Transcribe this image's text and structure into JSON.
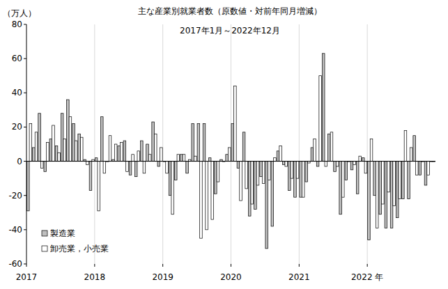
{
  "chart_data": {
    "type": "bar",
    "title": "主な産業別就業者数（原数値・対前年同月増減）",
    "subtitle": "2017年1月～2022年12月",
    "y_label": "（万人）",
    "categories": [
      "2017",
      null,
      null,
      null,
      null,
      null,
      null,
      null,
      null,
      null,
      null,
      null,
      "2018",
      null,
      null,
      null,
      null,
      null,
      null,
      null,
      null,
      null,
      null,
      null,
      "2019",
      null,
      null,
      null,
      null,
      null,
      null,
      null,
      null,
      null,
      null,
      null,
      "2020",
      null,
      null,
      null,
      null,
      null,
      null,
      null,
      null,
      null,
      null,
      null,
      "2021",
      null,
      null,
      null,
      null,
      null,
      null,
      null,
      null,
      null,
      null,
      null,
      "2022 年",
      null,
      null,
      null,
      null,
      null,
      null,
      null,
      null,
      null,
      null,
      null
    ],
    "series": [
      {
        "name": "製造業",
        "color": "#bfbfbf",
        "values": [
          -29,
          8,
          28,
          -6,
          13,
          9,
          28,
          36,
          22,
          16,
          1,
          -17,
          2,
          26,
          0,
          1,
          9,
          12,
          -8,
          -9,
          12,
          10,
          23,
          -3,
          0,
          -20,
          -11,
          4,
          -7,
          22,
          22,
          22,
          2,
          -19,
          1,
          4,
          22,
          -4,
          17,
          -32,
          -28,
          -9,
          -51,
          -38,
          6,
          -2,
          -17,
          -21,
          -21,
          -12,
          8,
          -3,
          63,
          16,
          -6,
          -31,
          -11,
          -5,
          -19,
          2,
          -46,
          -20,
          -31,
          -39,
          -39,
          -33,
          -22,
          -22,
          15,
          -8,
          -14,
          0
        ]
      },
      {
        "name": "卸売業，小売業",
        "color": "#ffffff",
        "values": [
          22,
          17,
          -4,
          11,
          21,
          5,
          13,
          26,
          12,
          14,
          -2,
          1,
          -29,
          -7,
          15,
          10,
          11,
          -6,
          4,
          6,
          -7,
          4,
          16,
          8,
          -7,
          -31,
          4,
          4,
          1,
          3,
          -45,
          -40,
          -34,
          -12,
          0,
          8,
          44,
          -23,
          -16,
          -25,
          -14,
          -13,
          -11,
          2,
          9,
          -3,
          -10,
          -10,
          -21,
          -1,
          13,
          50,
          -3,
          17,
          -3,
          -21,
          0,
          -2,
          3,
          -7,
          13,
          -39,
          -25,
          -18,
          -26,
          -22,
          18,
          8,
          -8,
          0,
          -8,
          0
        ]
      }
    ],
    "ylim": [
      -60,
      80
    ],
    "yticks": [
      -60,
      -40,
      -20,
      0,
      20,
      40,
      60,
      80
    ],
    "grid": true,
    "legend": "lower left"
  }
}
